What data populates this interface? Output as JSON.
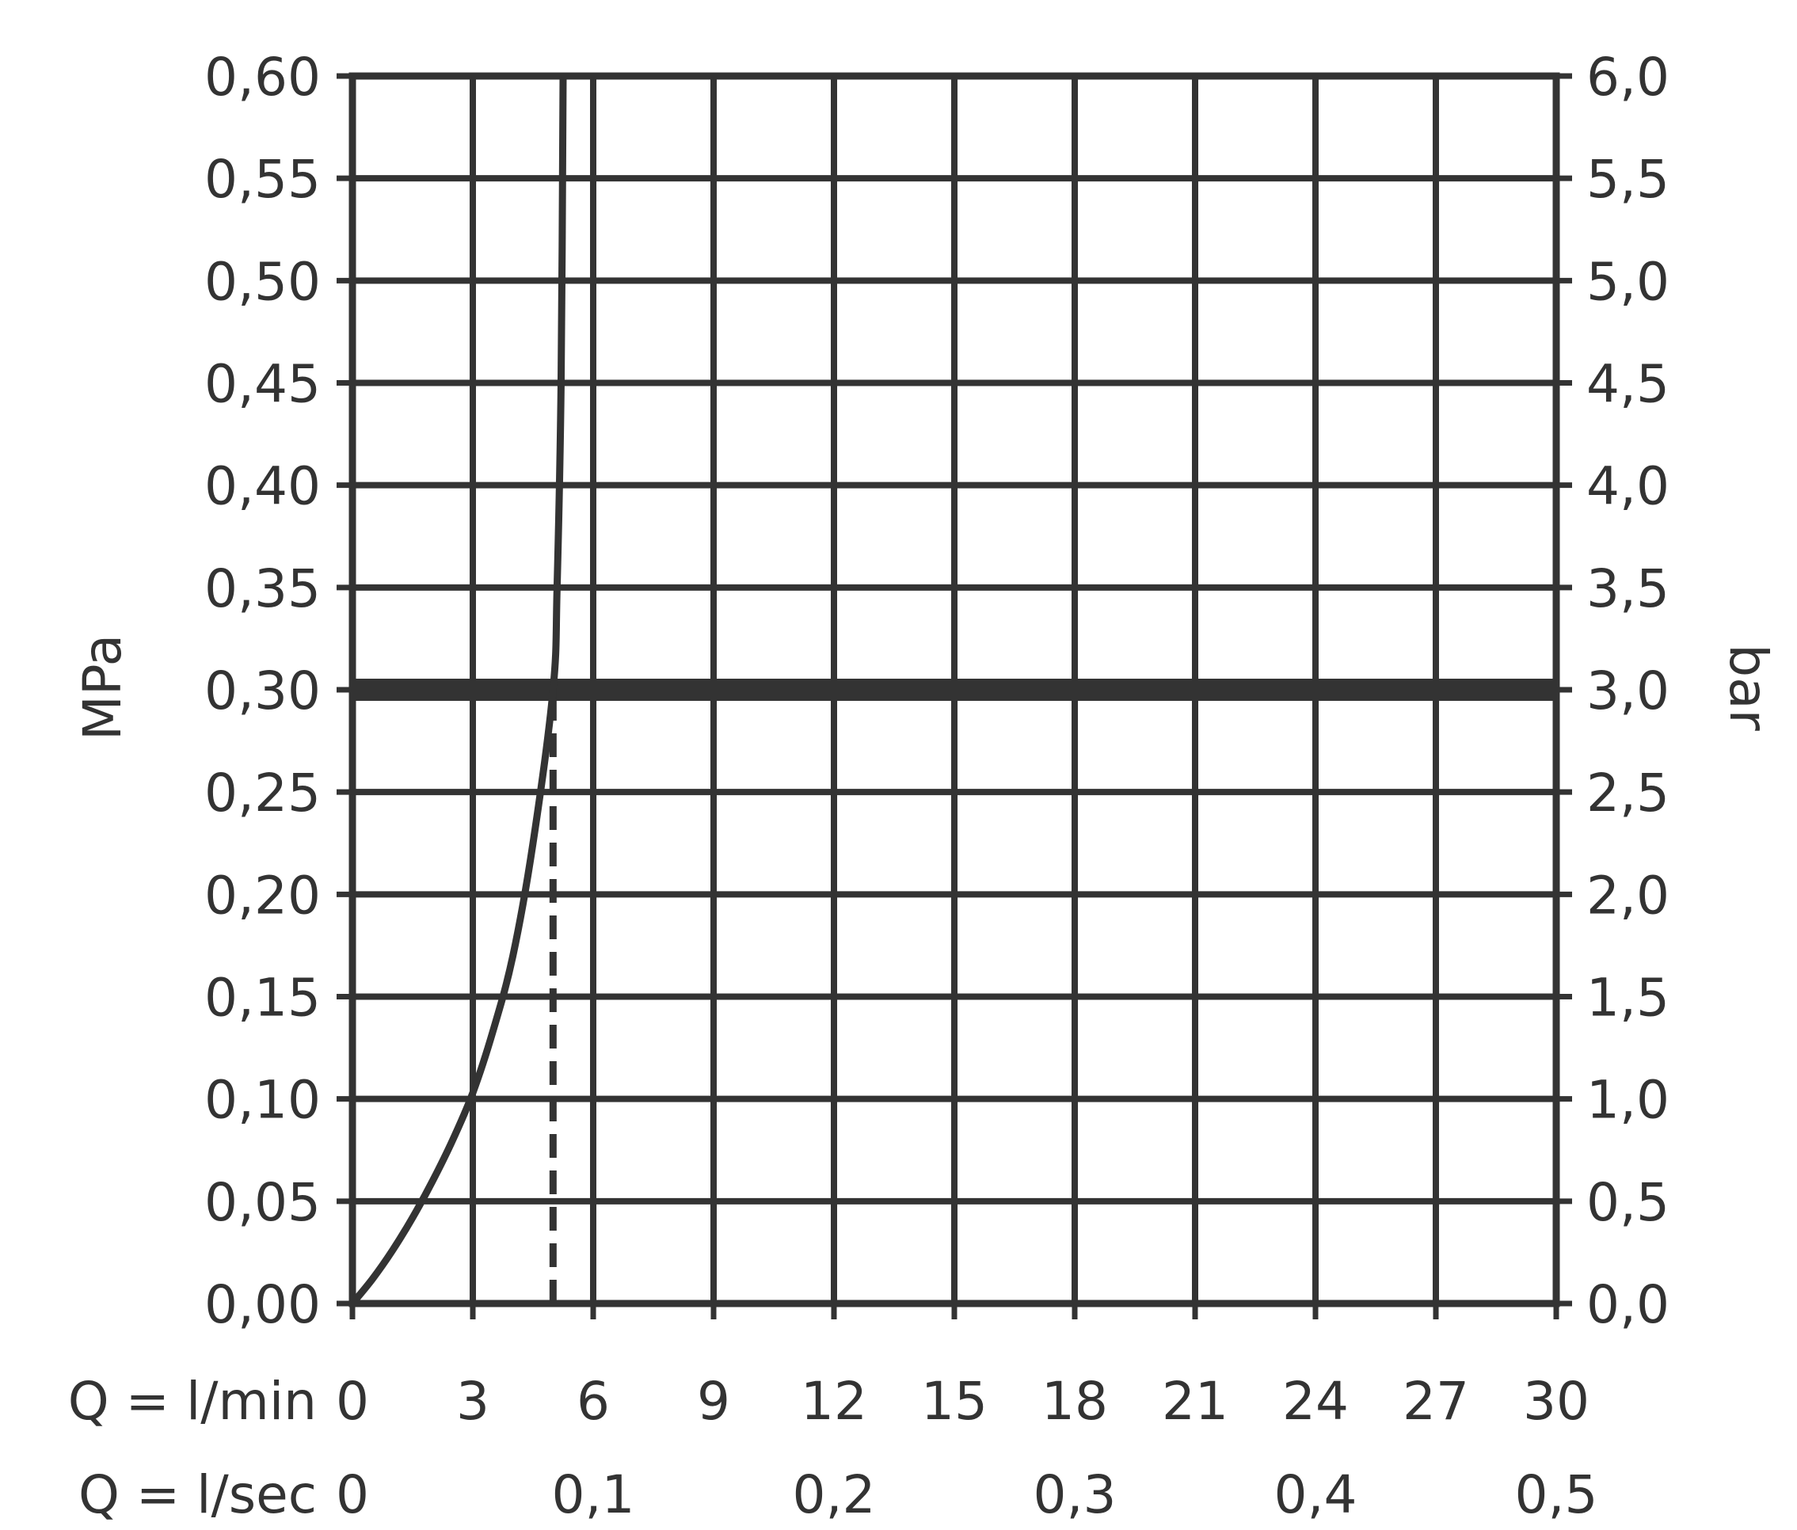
{
  "chart_data": {
    "type": "line",
    "title": "",
    "colors": {
      "ink": "#333333",
      "background": "#ffffff"
    },
    "grid": true,
    "x_axis": {
      "unit": "l/min",
      "range": [
        0,
        30
      ],
      "ticks": [
        0,
        3,
        6,
        9,
        12,
        15,
        18,
        21,
        24,
        27,
        30
      ],
      "tick_labels": [
        "0",
        "3",
        "6",
        "9",
        "12",
        "15",
        "18",
        "21",
        "24",
        "27",
        "30"
      ],
      "label": "Q = l/min"
    },
    "x_axis_secondary": {
      "unit": "l/sec",
      "range": [
        0,
        0.5
      ],
      "ticks": [
        0,
        0.1,
        0.2,
        0.3,
        0.4,
        0.5
      ],
      "tick_labels": [
        "0",
        "0,1",
        "0,2",
        "0,3",
        "0,4",
        "0,5"
      ],
      "label": "Q = l/sec"
    },
    "y_axis": {
      "label": "MPa",
      "range": [
        0,
        0.6
      ],
      "ticks": [
        0,
        0.05,
        0.1,
        0.15,
        0.2,
        0.25,
        0.3,
        0.35,
        0.4,
        0.45,
        0.5,
        0.55,
        0.6
      ],
      "tick_labels": [
        "0,00",
        "0,05",
        "0,10",
        "0,15",
        "0,20",
        "0,25",
        "0,30",
        "0,35",
        "0,40",
        "0,45",
        "0,50",
        "0,55",
        "0,60"
      ]
    },
    "y_axis_secondary": {
      "label": "bar",
      "range": [
        0,
        6
      ],
      "tick_labels": [
        "0,0",
        "0,5",
        "1,0",
        "1,5",
        "2,0",
        "2,5",
        "3,0",
        "3,5",
        "4,0",
        "4,5",
        "5,0",
        "5,5",
        "6,0"
      ]
    },
    "series": [
      {
        "type": "line",
        "points": [
          [
            0,
            0
          ],
          [
            0.5,
            0.012
          ],
          [
            1.0,
            0.026
          ],
          [
            1.5,
            0.042
          ],
          [
            2.0,
            0.06
          ],
          [
            2.5,
            0.08
          ],
          [
            3.0,
            0.103
          ],
          [
            3.5,
            0.133
          ],
          [
            4.0,
            0.17
          ],
          [
            4.5,
            0.225
          ],
          [
            5.0,
            0.3
          ],
          [
            5.1,
            0.35
          ],
          [
            5.2,
            0.45
          ],
          [
            5.25,
            0.6
          ]
        ]
      }
    ],
    "reference_lines": [
      {
        "orientation": "horizontal",
        "style": "thick-solid",
        "y": 0.3
      },
      {
        "orientation": "vertical",
        "style": "dashed",
        "x": 5.0,
        "from_y": 0,
        "to_y": 0.3
      }
    ]
  }
}
